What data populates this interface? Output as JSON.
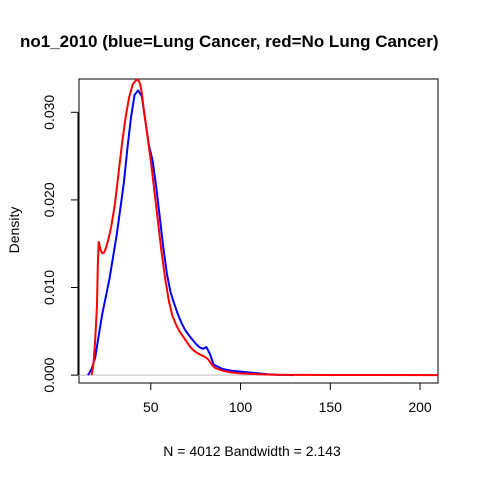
{
  "chart_data": {
    "type": "line",
    "title": "no1_2010 (blue=Lung Cancer, red=No Lung Cancer)",
    "xlabel": "N = 4012   Bandwidth = 2.143",
    "ylabel": "Density",
    "xlim": [
      10,
      210
    ],
    "ylim": [
      -0.0009,
      0.0338
    ],
    "x_ticks": [
      50,
      100,
      150,
      200
    ],
    "y_ticks": [
      0.0,
      0.01,
      0.02,
      0.03
    ],
    "x_tick_labels": [
      "50",
      "100",
      "150",
      "200"
    ],
    "y_tick_labels": [
      "0.000",
      "0.010",
      "0.020",
      "0.030"
    ],
    "baseline": 0,
    "grid": false,
    "colors": {
      "lung_cancer": "#0000ff",
      "no_lung_cancer": "#ff0000",
      "baseline": "#bebebe"
    },
    "series": [
      {
        "color": "#0000ff",
        "x": [
          15,
          17,
          19,
          21,
          23,
          25,
          27,
          29,
          31,
          33,
          35,
          37,
          39,
          41,
          43,
          45,
          47,
          49,
          51,
          53,
          55,
          57,
          59,
          61,
          63,
          65,
          67,
          69,
          71,
          73,
          75,
          77,
          79,
          81,
          83,
          85,
          90,
          95,
          100,
          105,
          110,
          115,
          120,
          125,
          130
        ],
        "y": [
          0.0,
          0.0007,
          0.002,
          0.0045,
          0.007,
          0.009,
          0.011,
          0.0135,
          0.016,
          0.019,
          0.022,
          0.026,
          0.0295,
          0.032,
          0.0325,
          0.0318,
          0.029,
          0.0262,
          0.0245,
          0.0215,
          0.018,
          0.0145,
          0.0115,
          0.0095,
          0.0082,
          0.007,
          0.006,
          0.0052,
          0.0046,
          0.0041,
          0.0036,
          0.0032,
          0.003,
          0.0032,
          0.0024,
          0.0012,
          0.0007,
          0.0005,
          0.0004,
          0.0003,
          0.0002,
          0.0001,
          5e-05,
          2e-05,
          0.0
        ]
      },
      {
        "color": "#ff0000",
        "x": [
          17,
          18,
          19,
          20,
          20.5,
          21,
          21.5,
          22,
          23,
          24,
          25,
          26,
          27,
          28,
          30,
          32,
          34,
          36,
          38,
          40,
          42,
          43,
          44,
          45,
          46,
          48,
          50,
          52,
          54,
          56,
          58,
          60,
          62,
          64,
          66,
          68,
          70,
          72,
          74,
          76,
          78,
          80,
          82,
          84,
          86,
          90,
          95,
          100,
          110,
          120,
          150,
          210
        ],
        "y": [
          0.0,
          0.0012,
          0.004,
          0.008,
          0.0125,
          0.0152,
          0.0148,
          0.0143,
          0.0139,
          0.014,
          0.0145,
          0.0152,
          0.016,
          0.017,
          0.0195,
          0.023,
          0.0265,
          0.0295,
          0.0318,
          0.0332,
          0.0337,
          0.0337,
          0.0333,
          0.0322,
          0.0305,
          0.0275,
          0.0245,
          0.021,
          0.0175,
          0.014,
          0.011,
          0.0085,
          0.0068,
          0.0058,
          0.005,
          0.0044,
          0.0038,
          0.0032,
          0.0028,
          0.0025,
          0.0023,
          0.0021,
          0.0018,
          0.0012,
          0.0008,
          0.0005,
          0.0003,
          0.0002,
          0.0001,
          5e-05,
          1e-05,
          0.0
        ]
      }
    ]
  }
}
